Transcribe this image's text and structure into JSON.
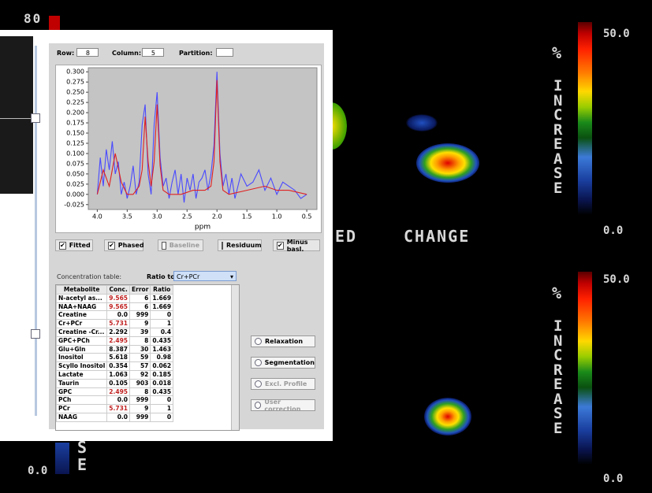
{
  "background": {
    "corner_label": "80",
    "left_word": "ED",
    "change_word": "CHANGE",
    "scales": [
      {
        "percent": "%",
        "word": "INCREASE",
        "max_label": "50.0",
        "min_label": "0.0"
      },
      {
        "percent": "%",
        "word": "INCREASE",
        "max_label": "50.0",
        "min_label": "0.0"
      }
    ],
    "bottom_left_letters": [
      "S",
      "E"
    ],
    "bottom_left_label": "0.0"
  },
  "controls": {
    "row_label": "Row:",
    "row_value": "8",
    "column_label": "Column:",
    "column_value": "5",
    "partition_label": "Partition:"
  },
  "chart_data": {
    "type": "line",
    "xlabel": "ppm",
    "xlim": [
      4.15,
      0.33
    ],
    "ylim": [
      -0.037,
      0.31
    ],
    "xticks": [
      {
        "value": 4,
        "label": "4.0"
      },
      3.5,
      {
        "value": 3,
        "label": "3.0"
      },
      2.5,
      {
        "value": 2,
        "label": "2.0"
      },
      1.5,
      {
        "value": 1,
        "label": "1.0"
      },
      0.5
    ],
    "yticks": [
      {
        "value": 0.3,
        "label": "0.300"
      },
      0.275,
      {
        "value": 0.25,
        "label": "0.250"
      },
      0.225,
      {
        "value": 0.2,
        "label": "0.200"
      },
      0.175,
      {
        "value": 0.15,
        "label": "0.150"
      },
      0.125,
      {
        "value": 0.1,
        "label": "0.100"
      },
      0.075,
      {
        "value": 0.05,
        "label": "0.050"
      },
      0.025,
      {
        "value": 0,
        "label": "0.000"
      },
      -0.025
    ],
    "series": [
      {
        "color": "#4a4aff",
        "x": [
          4.0,
          3.95,
          3.9,
          3.85,
          3.8,
          3.75,
          3.7,
          3.65,
          3.6,
          3.55,
          3.5,
          3.45,
          3.4,
          3.35,
          3.3,
          3.25,
          3.2,
          3.15,
          3.1,
          3.05,
          3.0,
          2.95,
          2.9,
          2.85,
          2.8,
          2.75,
          2.7,
          2.65,
          2.6,
          2.55,
          2.5,
          2.45,
          2.4,
          2.35,
          2.3,
          2.25,
          2.2,
          2.15,
          2.1,
          2.05,
          2.0,
          1.95,
          1.9,
          1.85,
          1.8,
          1.75,
          1.7,
          1.6,
          1.5,
          1.4,
          1.3,
          1.2,
          1.1,
          1.0,
          0.9,
          0.8,
          0.7,
          0.6,
          0.5
        ],
        "values": [
          0.0,
          0.09,
          0.02,
          0.11,
          0.06,
          0.13,
          0.05,
          0.08,
          0.0,
          0.03,
          -0.01,
          0.02,
          0.07,
          0.0,
          0.03,
          0.17,
          0.22,
          0.05,
          0.0,
          0.17,
          0.25,
          0.09,
          0.02,
          0.04,
          -0.01,
          0.03,
          0.06,
          0.0,
          0.05,
          -0.02,
          0.04,
          0.01,
          0.05,
          -0.01,
          0.03,
          0.04,
          0.06,
          0.01,
          0.05,
          0.12,
          0.3,
          0.1,
          0.02,
          0.05,
          0.0,
          0.04,
          -0.01,
          0.05,
          0.02,
          0.03,
          0.06,
          0.01,
          0.04,
          0.0,
          0.03,
          0.02,
          0.01,
          -0.01,
          0.0
        ]
      },
      {
        "color": "#e02020",
        "x": [
          4.0,
          3.9,
          3.8,
          3.7,
          3.6,
          3.5,
          3.4,
          3.3,
          3.25,
          3.2,
          3.15,
          3.1,
          3.05,
          3.0,
          2.95,
          2.9,
          2.8,
          2.6,
          2.4,
          2.2,
          2.1,
          2.05,
          2.0,
          1.95,
          1.9,
          1.8,
          1.5,
          1.2,
          1.0,
          0.8,
          0.5
        ],
        "values": [
          0.0,
          0.06,
          0.02,
          0.1,
          0.03,
          0.0,
          0.0,
          0.02,
          0.06,
          0.19,
          0.08,
          0.02,
          0.08,
          0.22,
          0.07,
          0.01,
          0.0,
          0.0,
          0.01,
          0.01,
          0.02,
          0.08,
          0.28,
          0.08,
          0.01,
          0.0,
          0.01,
          0.02,
          0.01,
          0.01,
          0.0
        ]
      }
    ]
  },
  "options": [
    {
      "label": "Fitted",
      "checked": true,
      "enabled": true
    },
    {
      "label": "Phased",
      "checked": true,
      "enabled": true
    },
    {
      "label": "Baseline",
      "checked": false,
      "enabled": false
    },
    {
      "label": "Residuum",
      "checked": false,
      "enabled": true
    },
    {
      "label": "Minus basl.",
      "checked": true,
      "enabled": true
    }
  ],
  "concentration": {
    "title": "Concentration table:",
    "ratio_label": "Ratio to:",
    "ratio_value": "Cr+PCr",
    "headers": [
      "Metabolite",
      "Conc.",
      "Error",
      "Ratio"
    ],
    "rows": [
      [
        "N-acetyl as...",
        "9.565",
        "6",
        "1.669"
      ],
      [
        "NAA+NAAG",
        "9.565",
        "6",
        "1.669"
      ],
      [
        "Creatine",
        "0.0",
        "999",
        "0"
      ],
      [
        "Cr+PCr",
        "5.731",
        "9",
        "1"
      ],
      [
        "Creatine -Cr...",
        "2.292",
        "39",
        "0.4"
      ],
      [
        "GPC+PCh",
        "2.495",
        "8",
        "0.435"
      ],
      [
        "Glu+Gln",
        "8.387",
        "30",
        "1.463"
      ],
      [
        "Inositol",
        "5.618",
        "59",
        "0.98"
      ],
      [
        "Scyllo Inositol",
        "0.354",
        "57",
        "0.062"
      ],
      [
        "Lactate",
        "1.063",
        "92",
        "0.185"
      ],
      [
        "Taurin",
        "0.105",
        "903",
        "0.018"
      ],
      [
        "GPC",
        "2.495",
        "8",
        "0.435"
      ],
      [
        "PCh",
        "0.0",
        "999",
        "0"
      ],
      [
        "PCr",
        "5.731",
        "9",
        "1"
      ],
      [
        "NAAG",
        "0.0",
        "999",
        "0"
      ]
    ]
  },
  "buttons": [
    {
      "label": "Relaxation",
      "enabled": true
    },
    {
      "label": "Segmentation",
      "enabled": true
    },
    {
      "label": "Excl. Profile",
      "enabled": false
    },
    {
      "label": "User correction",
      "enabled": false
    }
  ]
}
